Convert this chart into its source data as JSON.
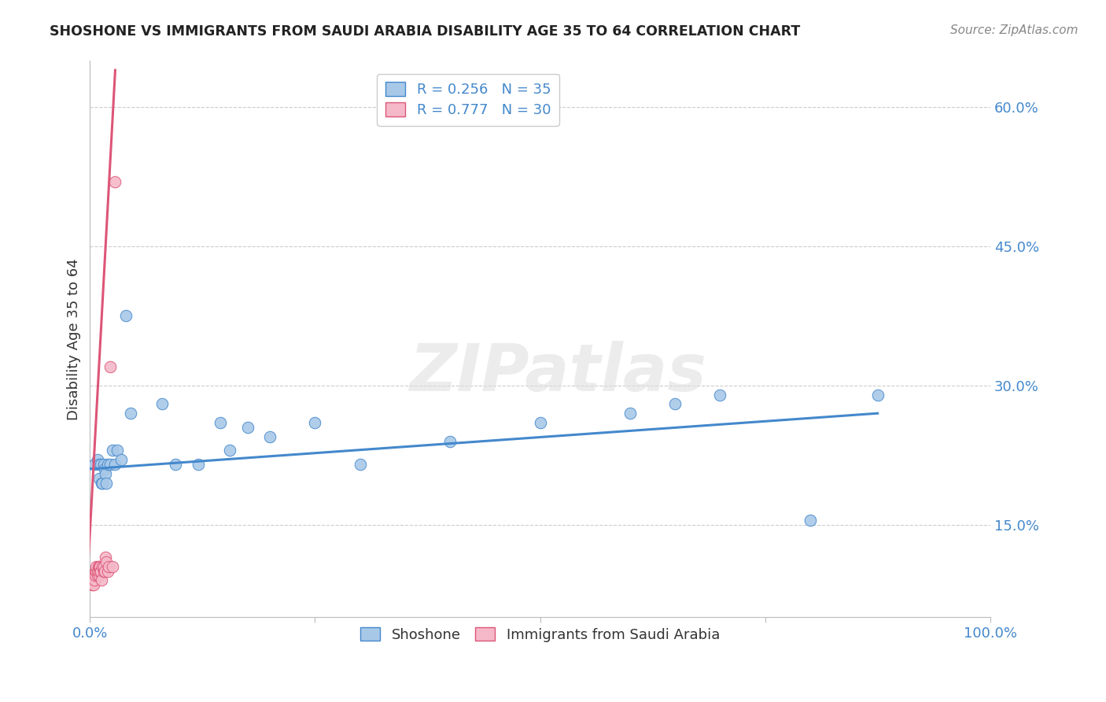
{
  "title": "SHOSHONE VS IMMIGRANTS FROM SAUDI ARABIA DISABILITY AGE 35 TO 64 CORRELATION CHART",
  "source_text": "Source: ZipAtlas.com",
  "ylabel": "Disability Age 35 to 64",
  "xlim": [
    0.0,
    1.0
  ],
  "ylim": [
    0.05,
    0.65
  ],
  "ytick_positions": [
    0.15,
    0.3,
    0.45,
    0.6
  ],
  "ytick_labels": [
    "15.0%",
    "30.0%",
    "45.0%",
    "60.0%"
  ],
  "blue_R": 0.256,
  "blue_N": 35,
  "pink_R": 0.777,
  "pink_N": 30,
  "shoshone_x": [
    0.005,
    0.008,
    0.01,
    0.01,
    0.012,
    0.013,
    0.014,
    0.015,
    0.016,
    0.017,
    0.018,
    0.02,
    0.022,
    0.025,
    0.028,
    0.03,
    0.035,
    0.04,
    0.045,
    0.08,
    0.095,
    0.12,
    0.145,
    0.155,
    0.175,
    0.2,
    0.25,
    0.3,
    0.4,
    0.5,
    0.6,
    0.65,
    0.7,
    0.8,
    0.875
  ],
  "shoshone_y": [
    0.215,
    0.22,
    0.215,
    0.2,
    0.215,
    0.195,
    0.195,
    0.215,
    0.21,
    0.205,
    0.195,
    0.215,
    0.215,
    0.23,
    0.215,
    0.23,
    0.22,
    0.375,
    0.27,
    0.28,
    0.215,
    0.215,
    0.26,
    0.23,
    0.255,
    0.245,
    0.26,
    0.215,
    0.24,
    0.26,
    0.27,
    0.28,
    0.29,
    0.155,
    0.29
  ],
  "saudi_x": [
    0.002,
    0.003,
    0.004,
    0.005,
    0.005,
    0.006,
    0.006,
    0.007,
    0.007,
    0.008,
    0.008,
    0.009,
    0.01,
    0.01,
    0.01,
    0.011,
    0.012,
    0.012,
    0.013,
    0.014,
    0.015,
    0.015,
    0.016,
    0.017,
    0.018,
    0.02,
    0.021,
    0.022,
    0.025,
    0.028
  ],
  "saudi_y": [
    0.085,
    0.09,
    0.085,
    0.095,
    0.09,
    0.1,
    0.095,
    0.1,
    0.105,
    0.095,
    0.1,
    0.105,
    0.095,
    0.1,
    0.105,
    0.105,
    0.1,
    0.1,
    0.09,
    0.105,
    0.1,
    0.105,
    0.1,
    0.115,
    0.11,
    0.1,
    0.105,
    0.32,
    0.105,
    0.52
  ],
  "blue_line_x": [
    0.0,
    0.875
  ],
  "blue_line_y": [
    0.21,
    0.27
  ],
  "pink_line_x": [
    -0.005,
    0.028
  ],
  "pink_line_y": [
    0.055,
    0.64
  ],
  "legend_color_blue": "#A8C8E8",
  "legend_color_pink": "#F5B8C8",
  "line_color_blue": "#4488CC",
  "line_color_pink": "#DD5577",
  "dot_color_blue": "#A8C8E8",
  "dot_color_pink": "#F5B8C8",
  "title_color": "#222222",
  "axis_label_color": "#4488CC",
  "grid_color": "#CCCCCC",
  "background_color": "#FFFFFF",
  "watermark_text": "ZIPatlas",
  "source_text_color": "#888888"
}
